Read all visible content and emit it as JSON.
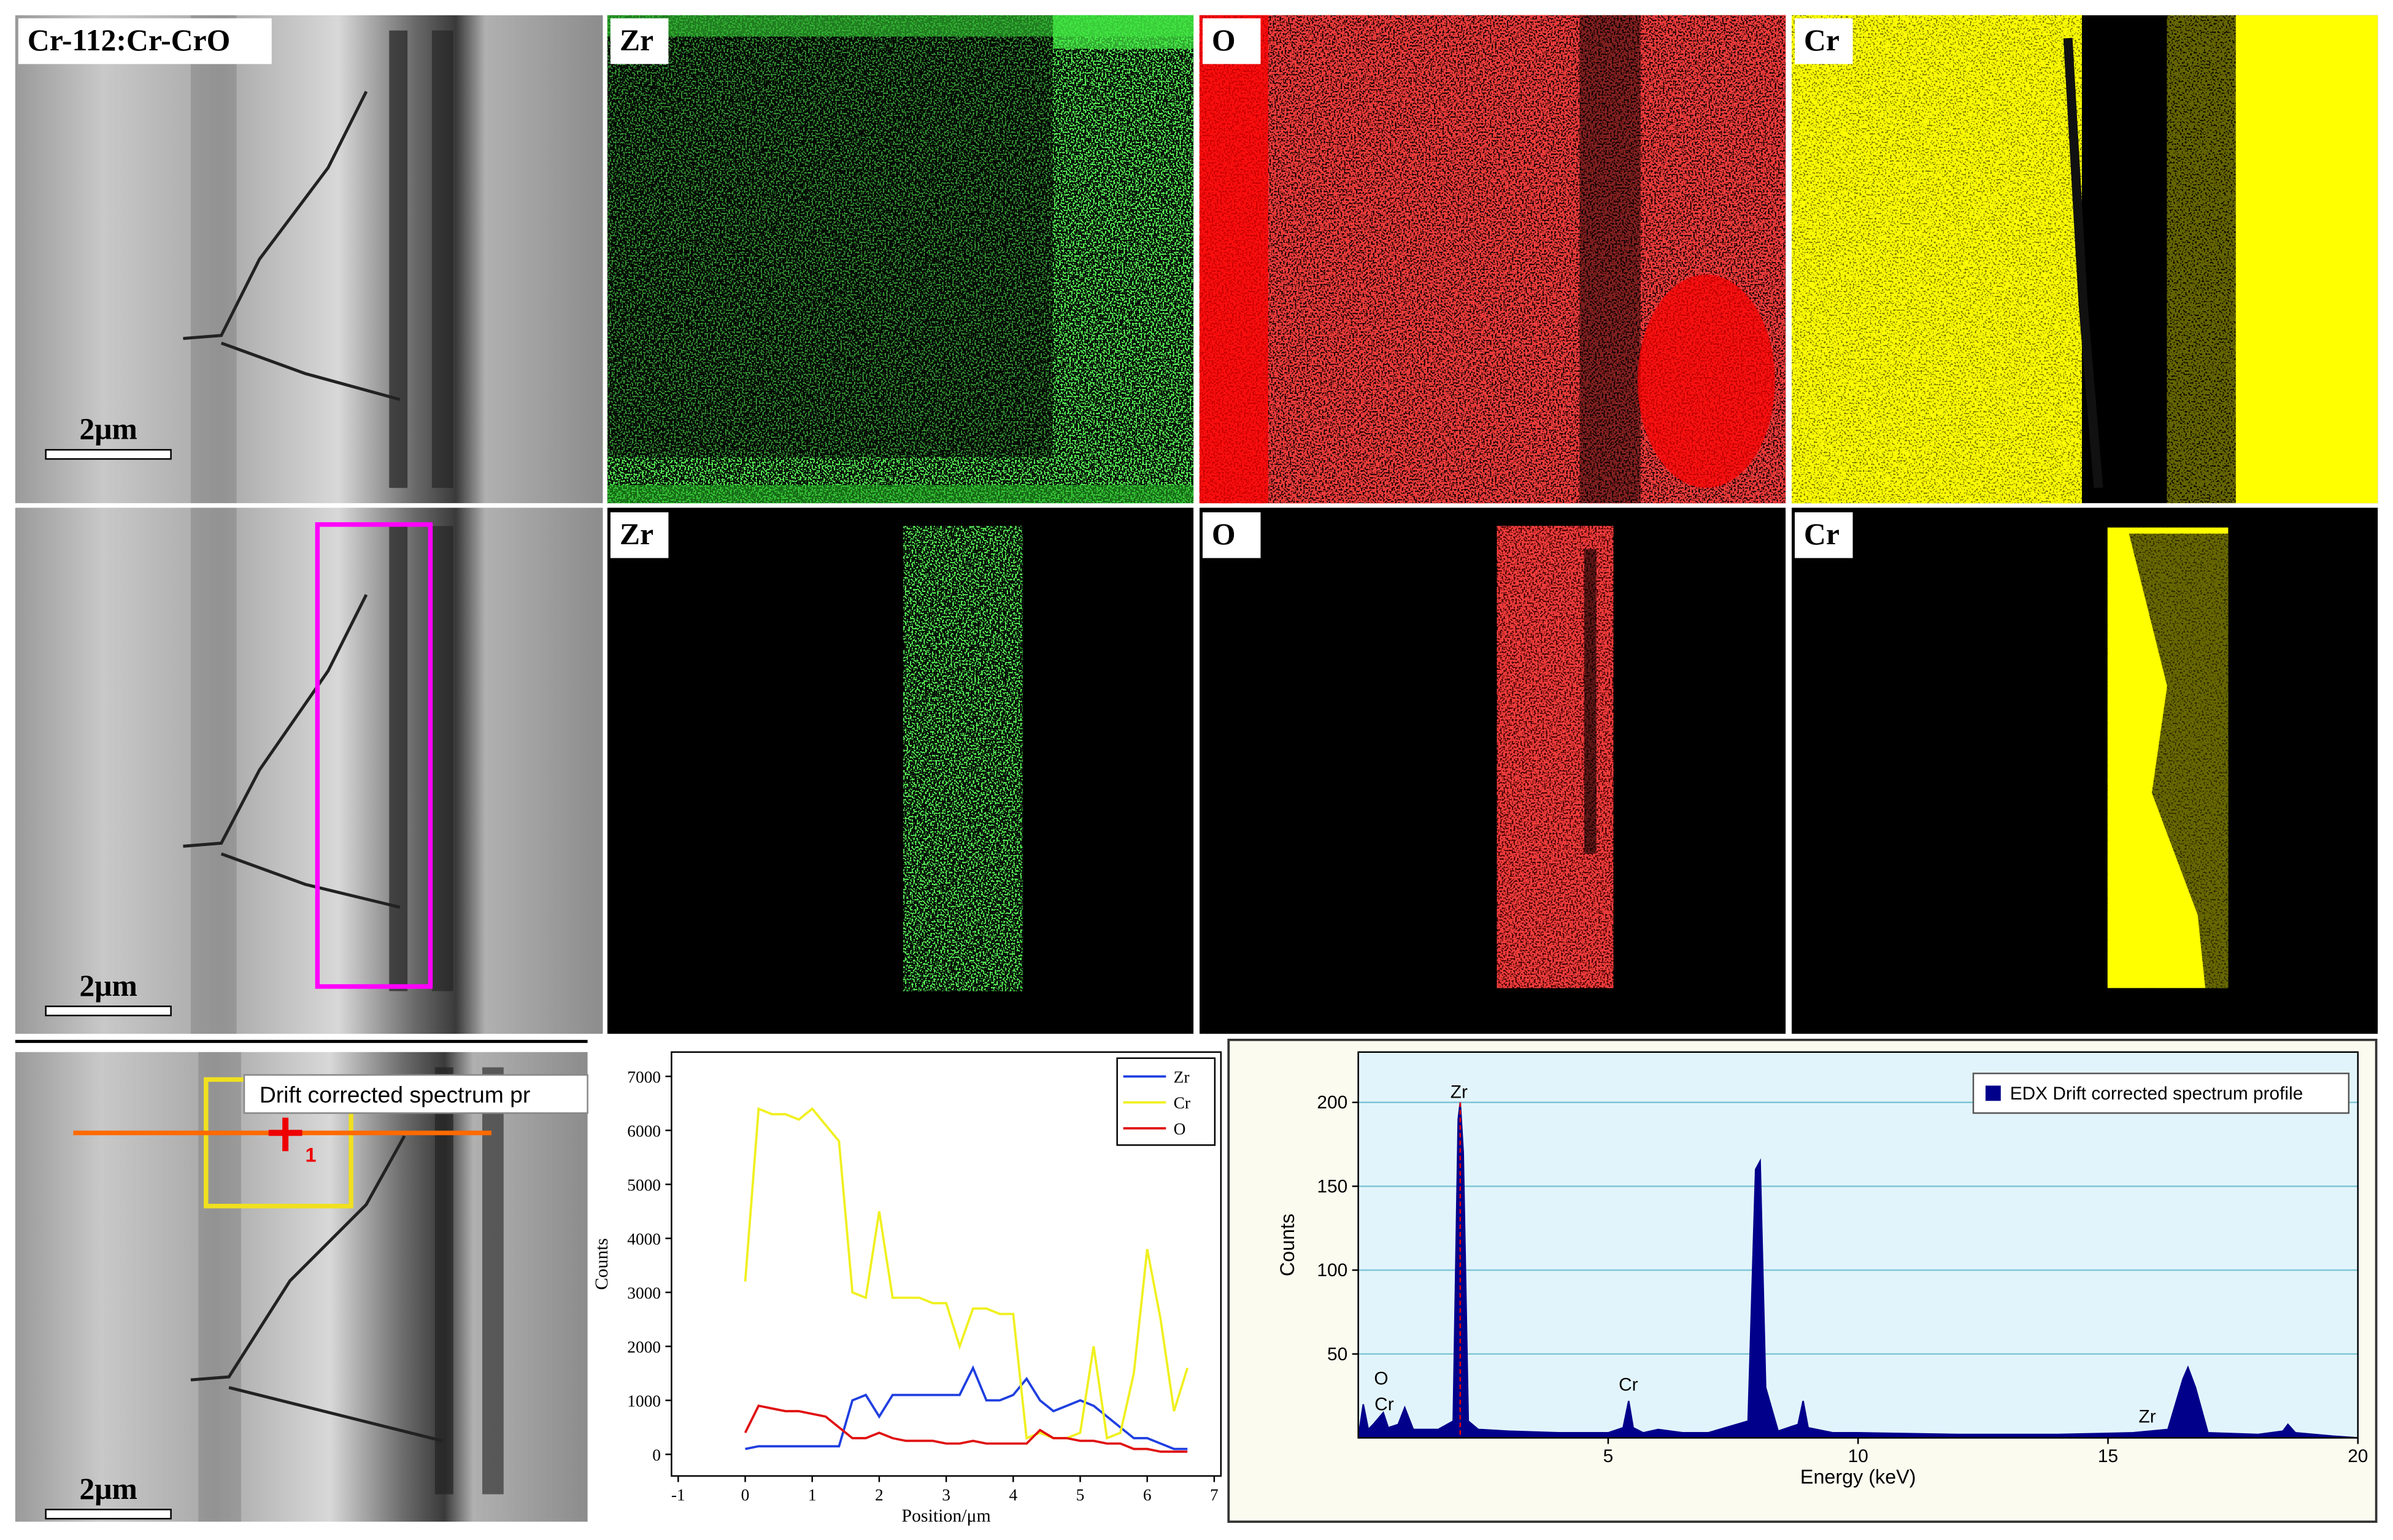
{
  "panels": {
    "sample_label": "Cr-112:Cr-CrO",
    "row1_labels": [
      "Zr",
      "O",
      "Cr"
    ],
    "row2_labels": [
      "Zr",
      "O",
      "Cr"
    ],
    "scale_bars": [
      "2μm",
      "2μm",
      "2μm"
    ]
  },
  "line_scan": {
    "callout": "Drift corrected spectrum pr",
    "marker": "1"
  },
  "chart_data": [
    {
      "type": "line",
      "xlabel": "Position/μm",
      "ylabel": "Counts",
      "x": [
        0,
        0.2,
        0.4,
        0.6,
        0.8,
        1.0,
        1.2,
        1.4,
        1.6,
        1.8,
        2.0,
        2.2,
        2.4,
        2.6,
        2.8,
        3.0,
        3.2,
        3.4,
        3.6,
        3.8,
        4.0,
        4.2,
        4.4,
        4.6,
        4.8,
        5.0,
        5.2,
        5.4,
        5.6,
        5.8,
        6.0,
        6.2,
        6.4,
        6.6
      ],
      "series": [
        {
          "name": "Zr",
          "color": "#1f3fe0",
          "values": [
            100,
            150,
            150,
            150,
            150,
            150,
            150,
            150,
            1000,
            1100,
            700,
            1100,
            1100,
            1100,
            1100,
            1100,
            1100,
            1600,
            1000,
            1000,
            1100,
            1400,
            1000,
            800,
            900,
            1000,
            900,
            700,
            500,
            300,
            300,
            200,
            100,
            100
          ]
        },
        {
          "name": "Cr",
          "color": "#f0f020",
          "values": [
            3200,
            6400,
            6300,
            6300,
            6200,
            6400,
            6100,
            5800,
            3000,
            2900,
            4500,
            2900,
            2900,
            2900,
            2800,
            2800,
            2000,
            2700,
            2700,
            2600,
            2600,
            300,
            400,
            300,
            300,
            400,
            2000,
            300,
            400,
            1500,
            3800,
            2500,
            800,
            1600
          ]
        },
        {
          "name": "O",
          "color": "#e01010",
          "values": [
            400,
            900,
            850,
            800,
            800,
            750,
            700,
            500,
            300,
            300,
            400,
            300,
            250,
            250,
            250,
            200,
            200,
            250,
            200,
            200,
            200,
            200,
            450,
            300,
            300,
            250,
            250,
            200,
            200,
            100,
            100,
            50,
            50,
            50
          ]
        }
      ],
      "xlim": [
        -1.1,
        7.1
      ],
      "xticks": [
        -1,
        0,
        1,
        2,
        3,
        4,
        5,
        6,
        7
      ],
      "ylim": [
        -400,
        7450
      ],
      "yticks": [
        0,
        1000,
        2000,
        3000,
        4000,
        5000,
        6000,
        7000
      ],
      "legend": "upper right"
    },
    {
      "type": "area",
      "xlabel": "Energy (keV)",
      "ylabel": "Counts",
      "x": [
        0,
        0.1,
        0.2,
        0.3,
        0.5,
        0.6,
        0.8,
        0.93,
        1.1,
        1.6,
        1.9,
        2.0,
        2.04,
        2.1,
        2.2,
        2.4,
        3,
        4,
        5,
        5.3,
        5.41,
        5.5,
        5.7,
        6,
        6.5,
        7,
        7.8,
        7.95,
        8.04,
        8.15,
        8.4,
        8.8,
        8.9,
        9.0,
        9.5,
        10,
        12,
        14,
        15.5,
        16.2,
        16.5,
        16.6,
        16.75,
        17,
        18,
        18.5,
        18.6,
        18.75,
        19.5,
        20
      ],
      "series": [
        {
          "name": "EDX Drift corrected spectrum profile",
          "color": "#00008b",
          "values": [
            0,
            20,
            5,
            8,
            15,
            6,
            8,
            18,
            5,
            5,
            10,
            190,
            200,
            170,
            10,
            5,
            4,
            3,
            3,
            6,
            22,
            6,
            3,
            5,
            3,
            3,
            10,
            160,
            165,
            30,
            4,
            8,
            22,
            6,
            3,
            3,
            2,
            2,
            3,
            5,
            35,
            42,
            30,
            3,
            2,
            4,
            8,
            3,
            1,
            0
          ]
        }
      ],
      "annotations": [
        "O",
        "Cr",
        "Zr",
        "Cr",
        "Zr"
      ],
      "xlim": [
        0,
        20
      ],
      "xticks": [
        5,
        10,
        15,
        20
      ],
      "ylim": [
        0,
        230
      ],
      "yticks": [
        50,
        100,
        150,
        200
      ],
      "grid": true,
      "legend": "upper right"
    }
  ]
}
